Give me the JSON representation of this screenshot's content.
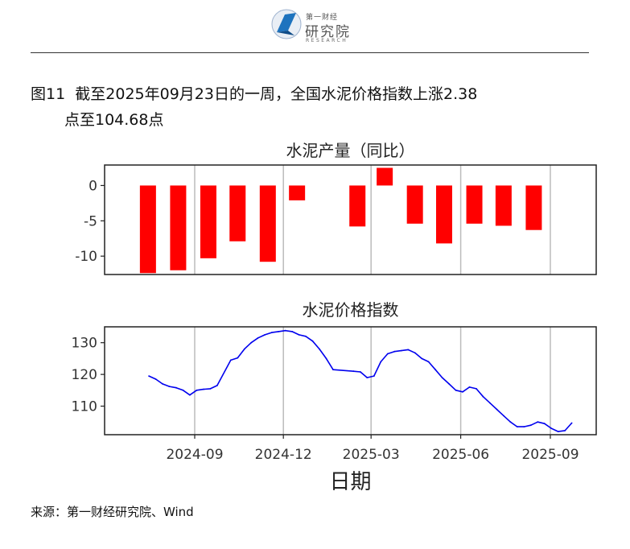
{
  "header": {
    "logo_small": "第一财经",
    "logo_big": "研究院",
    "logo_en": "RESEARCH"
  },
  "figure": {
    "label": "图11",
    "title_line1": "截至2025年09月23日的一周，全国水泥价格指数上涨2.38",
    "title_line2": "点至104.68点"
  },
  "source": "来源：第一财经研究院、Wind",
  "colors": {
    "bar": "#ff0000",
    "line": "#0000ee",
    "grid": "#bbbbbb"
  },
  "chart_data": [
    {
      "type": "bar",
      "title": "水泥产量（同比）",
      "x": [
        "2024-07",
        "2024-08",
        "2024-09",
        "2024-10",
        "2024-11",
        "2024-12",
        "2025-01",
        "2025-02",
        "2025-03",
        "2025-04",
        "2025-05",
        "2025-06",
        "2025-07",
        "2025-08",
        "2025-09"
      ],
      "values": [
        -12.4,
        -12.0,
        -10.3,
        -7.9,
        -10.8,
        -2.1,
        null,
        -5.8,
        2.5,
        -5.4,
        -8.2,
        -5.4,
        -5.7,
        -6.3,
        null
      ],
      "ylim": [
        -12.6,
        2.9
      ],
      "yticks": [
        0,
        -5,
        -10
      ],
      "grid_x": [
        "2024-09",
        "2024-12",
        "2025-03",
        "2025-06",
        "2025-09"
      ]
    },
    {
      "type": "line",
      "title": "水泥价格指数",
      "xlabel": "日期",
      "xticks": [
        "2024-09",
        "2024-12",
        "2025-03",
        "2025-06",
        "2025-09"
      ],
      "yticks": [
        110,
        120,
        130
      ],
      "ylim": [
        101,
        135
      ],
      "series": [
        {
          "x": [
            "2024-07-16",
            "2024-07-23",
            "2024-07-30",
            "2024-08-06",
            "2024-08-13",
            "2024-08-20",
            "2024-08-27",
            "2024-09-03",
            "2024-09-10",
            "2024-09-17",
            "2024-09-24",
            "2024-10-08",
            "2024-10-15",
            "2024-10-22",
            "2024-10-29",
            "2024-11-05",
            "2024-11-12",
            "2024-11-19",
            "2024-11-26",
            "2024-12-03",
            "2024-12-10",
            "2024-12-17",
            "2024-12-24",
            "2024-12-31",
            "2025-01-07",
            "2025-01-14",
            "2025-01-21",
            "2025-02-11",
            "2025-02-18",
            "2025-02-25",
            "2025-03-04",
            "2025-03-11",
            "2025-03-18",
            "2025-03-25",
            "2025-04-01",
            "2025-04-08",
            "2025-04-15",
            "2025-04-22",
            "2025-04-29",
            "2025-05-06",
            "2025-05-13",
            "2025-05-20",
            "2025-05-27",
            "2025-06-03",
            "2025-06-10",
            "2025-06-17",
            "2025-06-24",
            "2025-07-01",
            "2025-07-08",
            "2025-07-15",
            "2025-07-22",
            "2025-07-29",
            "2025-08-05",
            "2025-08-12",
            "2025-08-19",
            "2025-08-26",
            "2025-09-02",
            "2025-09-09",
            "2025-09-16",
            "2025-09-23"
          ],
          "values": [
            119.5,
            118.5,
            117.0,
            116.2,
            115.8,
            115.0,
            113.5,
            115.0,
            115.3,
            115.5,
            116.5,
            124.5,
            125.2,
            128.0,
            130.0,
            131.5,
            132.5,
            133.2,
            133.5,
            133.8,
            133.5,
            132.5,
            132.0,
            130.5,
            128.0,
            125.0,
            121.5,
            121.0,
            120.8,
            119.0,
            119.5,
            124.0,
            126.5,
            127.2,
            127.5,
            127.8,
            126.8,
            125.0,
            124.0,
            121.5,
            119.0,
            117.0,
            115.0,
            114.5,
            116.0,
            115.5,
            113.0,
            111.0,
            109.0,
            107.0,
            105.0,
            103.5,
            103.5,
            104.0,
            105.0,
            104.5,
            103.0,
            102.0,
            102.3,
            104.68
          ]
        }
      ]
    }
  ]
}
